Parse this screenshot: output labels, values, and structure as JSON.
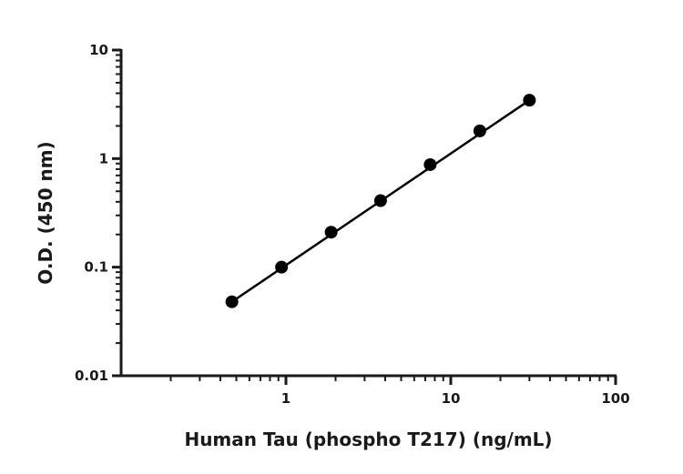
{
  "chart_data": {
    "type": "scatter",
    "title": "",
    "xlabel": "Human Tau (phospho T217) (ng/mL)",
    "ylabel": "O.D. (450 nm)",
    "xscale": "log",
    "yscale": "log",
    "xlim": [
      0.1,
      100
    ],
    "ylim": [
      0.01,
      10
    ],
    "x_ticks": [
      {
        "value": 1,
        "label": "1"
      },
      {
        "value": 10,
        "label": "10"
      },
      {
        "value": 100,
        "label": "100"
      }
    ],
    "y_ticks": [
      {
        "value": 0.01,
        "label": "0.01"
      },
      {
        "value": 0.1,
        "label": "0.1"
      },
      {
        "value": 1,
        "label": "1"
      },
      {
        "value": 10,
        "label": "10"
      }
    ],
    "grid": false,
    "legend": "none",
    "series": [
      {
        "x": [
          0.47,
          0.94,
          1.88,
          3.75,
          7.5,
          15,
          30
        ],
        "y": [
          0.048,
          0.1,
          0.21,
          0.41,
          0.88,
          1.8,
          3.45
        ]
      }
    ],
    "fit_line": {
      "x": [
        0.47,
        30
      ],
      "y": [
        0.048,
        3.45
      ]
    },
    "colors": {
      "marker": "#000000",
      "line": "#000000",
      "axis": "#1a1a1a"
    }
  }
}
